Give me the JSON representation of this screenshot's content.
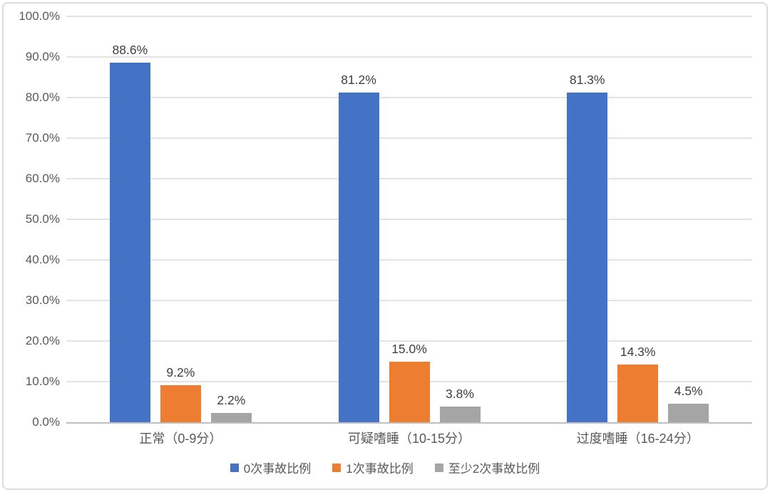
{
  "chart_data": {
    "type": "bar",
    "title": "",
    "xlabel": "",
    "ylabel": "",
    "categories": [
      "正常（0-9分）",
      "可疑嗜睡（10-15分）",
      "过度嗜睡（16-24分）"
    ],
    "series": [
      {
        "name": "0次事故比例",
        "color": "#4472C4",
        "values": [
          88.6,
          81.2,
          81.3
        ]
      },
      {
        "name": "1次事故比例",
        "color": "#ED7D31",
        "values": [
          9.2,
          15.0,
          14.3
        ]
      },
      {
        "name": "至少2次事故比例",
        "color": "#A5A5A5",
        "values": [
          2.2,
          3.8,
          4.5
        ]
      }
    ],
    "data_labels": [
      [
        "88.6%",
        "81.2%",
        "81.3%"
      ],
      [
        "9.2%",
        "15.0%",
        "14.3%"
      ],
      [
        "2.2%",
        "3.8%",
        "4.5%"
      ]
    ],
    "ylim": [
      0,
      100
    ],
    "y_tick_step": 10,
    "y_ticks": [
      "0.0%",
      "10.0%",
      "20.0%",
      "30.0%",
      "40.0%",
      "50.0%",
      "60.0%",
      "70.0%",
      "80.0%",
      "90.0%",
      "100.0%"
    ],
    "grid": true,
    "legend_position": "bottom",
    "colors": {
      "gridline": "#E3E3E3",
      "axis_line": "#BFBFBF",
      "tick_text": "#595959",
      "value_label_text": "#404040",
      "frame_border": "#DCDCDC",
      "background": "#FFFFFF"
    }
  }
}
